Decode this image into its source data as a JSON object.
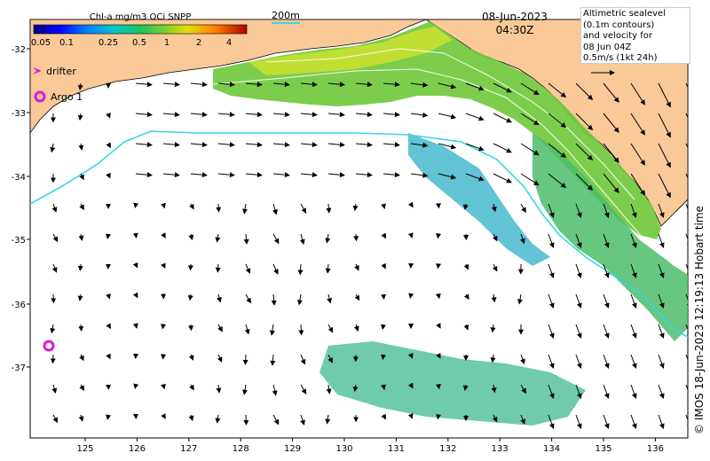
{
  "colorbar": {
    "title": "Chl-a mg/m3 OCi SNPP",
    "ticks": [
      "0.05",
      "0.1",
      "0.25",
      "0.5",
      "1",
      "2",
      "4"
    ]
  },
  "date": {
    "line1": "08-Jun-2023",
    "line2": "04:30Z"
  },
  "depth_label": "200m",
  "legend": {
    "text": "Altimetric sealevel\n(0.1m contours)\nand velocity for\n08 Jun 04Z\n0.5m/s (1kt 24h)"
  },
  "markers": {
    "drifter_label": "drifter",
    "argo_label": "Argo 1"
  },
  "axes": {
    "lat_labels": [
      "-32",
      "-33",
      "-34",
      "-35",
      "-36",
      "-37"
    ],
    "lon_labels": [
      "125",
      "126",
      "127",
      "128",
      "129",
      "130",
      "131",
      "132",
      "133",
      "134",
      "135",
      "136"
    ]
  },
  "credit": "© IMOS 18-Jun-2023 12:19:13 Hobart time",
  "colors": {
    "land": "#f9c998",
    "contour_cyan": "#38d7e6",
    "argo": "#e01ad8",
    "drifter": "#e01ad8"
  }
}
